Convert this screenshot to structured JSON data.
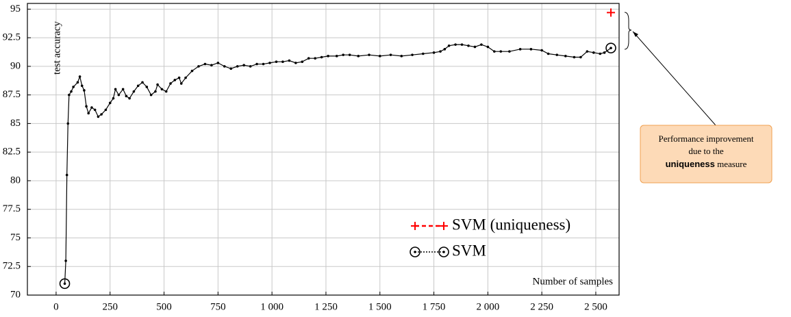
{
  "chart_data": {
    "type": "line",
    "ylabel": "test accuracy",
    "xlabel": "Number of samples",
    "xlim": [
      -133,
      2608
    ],
    "ylim": [
      70,
      95.5
    ],
    "xticks": [
      0,
      250,
      500,
      750,
      {
        "value": 1000,
        "label": "1 000"
      },
      {
        "value": 1250,
        "label": "1 250"
      },
      {
        "value": 1500,
        "label": "1 500"
      },
      {
        "value": 1750,
        "label": "1 750"
      },
      {
        "value": 2000,
        "label": "2 000"
      },
      {
        "value": 2250,
        "label": "2 250"
      },
      {
        "value": 2500,
        "label": "2 500"
      }
    ],
    "yticks": [
      70,
      72.5,
      75,
      77.5,
      80,
      82.5,
      85,
      87.5,
      90,
      92.5,
      95
    ],
    "grid": true,
    "legend": "lower right",
    "series": [
      {
        "name": "SVM (uniqueness)",
        "color": "#ff0000",
        "x": [
          2570
        ],
        "values": [
          94.7
        ]
      },
      {
        "name": "SVM",
        "color": "#000000",
        "x": [
          40,
          45,
          50,
          55,
          60,
          70,
          80,
          100,
          110,
          120,
          130,
          140,
          150,
          165,
          180,
          195,
          210,
          230,
          250,
          265,
          275,
          290,
          310,
          325,
          340,
          360,
          380,
          400,
          420,
          440,
          460,
          470,
          490,
          510,
          530,
          550,
          570,
          580,
          600,
          630,
          660,
          690,
          720,
          750,
          780,
          810,
          840,
          870,
          900,
          930,
          960,
          990,
          1020,
          1050,
          1080,
          1110,
          1140,
          1170,
          1200,
          1230,
          1260,
          1300,
          1330,
          1360,
          1400,
          1450,
          1500,
          1550,
          1600,
          1650,
          1700,
          1750,
          1780,
          1800,
          1820,
          1850,
          1880,
          1910,
          1940,
          1970,
          2000,
          2030,
          2060,
          2100,
          2150,
          2200,
          2250,
          2280,
          2320,
          2360,
          2400,
          2430,
          2460,
          2490,
          2520,
          2540,
          2570
        ],
        "values": [
          71.0,
          73,
          80.5,
          85,
          87.5,
          87.8,
          88.2,
          88.6,
          89.1,
          88.3,
          87.9,
          86.5,
          85.9,
          86.4,
          86.2,
          85.6,
          85.8,
          86.2,
          86.8,
          87.2,
          88.0,
          87.5,
          88.0,
          87.4,
          87.2,
          87.8,
          88.3,
          88.6,
          88.2,
          87.5,
          87.8,
          88.4,
          88.0,
          87.8,
          88.5,
          88.8,
          89.0,
          88.5,
          89.0,
          89.6,
          90.0,
          90.2,
          90.1,
          90.3,
          90.0,
          89.8,
          90.0,
          90.1,
          90.0,
          90.2,
          90.2,
          90.3,
          90.4,
          90.4,
          90.5,
          90.3,
          90.4,
          90.7,
          90.7,
          90.8,
          90.9,
          90.9,
          91.0,
          91.0,
          90.9,
          91.0,
          90.9,
          91.0,
          90.9,
          91.0,
          91.1,
          91.2,
          91.3,
          91.5,
          91.8,
          91.9,
          91.9,
          91.8,
          91.7,
          91.9,
          91.7,
          91.3,
          91.3,
          91.3,
          91.5,
          91.5,
          91.4,
          91.1,
          91.0,
          90.9,
          90.8,
          90.8,
          91.3,
          91.2,
          91.1,
          91.2,
          91.6
        ]
      }
    ],
    "annotation": {
      "lines": [
        "Performance improvement",
        "due to the"
      ],
      "bold": "uniqueness",
      "suffix": "measure"
    }
  }
}
